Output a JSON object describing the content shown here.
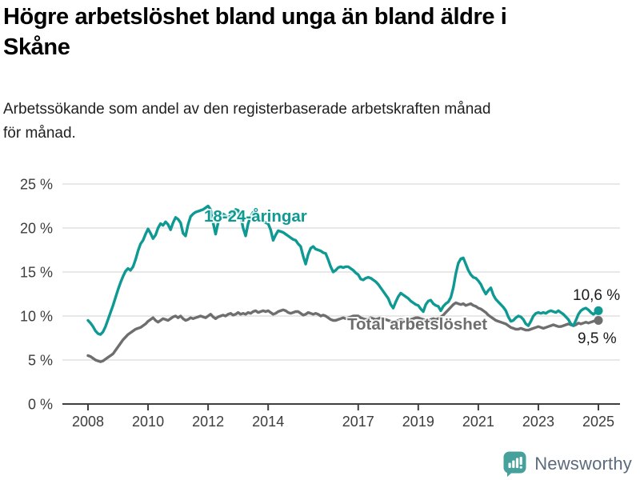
{
  "header": {
    "title_lines": [
      "Högre arbetslöshet bland unga än bland äldre i",
      "Skåne"
    ],
    "subtitle_lines": [
      "Arbetssökande som andel av den registerbaserade arbetskraften månad",
      "för månad."
    ]
  },
  "chart_data": {
    "type": "line",
    "title": "Högre arbetslöshet bland unga än bland äldre i Skåne",
    "subtitle": "Arbetssökande som andel av den registerbaserade arbetskraften månad för månad.",
    "x_unit": "month",
    "x_start_year": 2008,
    "x_end_year": 2025,
    "x_tick_years": [
      2008,
      2010,
      2012,
      2014,
      2017,
      2019,
      2021,
      2023,
      2025
    ],
    "x_tick_labels": [
      "2008",
      "2010",
      "2012",
      "2014",
      "2017",
      "2019",
      "2021",
      "2023",
      "2025"
    ],
    "ylim": [
      0,
      25
    ],
    "y_tick_values": [
      0,
      5,
      10,
      15,
      20,
      25
    ],
    "y_tick_labels": [
      "0 %",
      "5 %",
      "10 %",
      "15 %",
      "20 %",
      "25 %"
    ],
    "grid": "horizontal",
    "legend_position": "inline-labels",
    "colors": {
      "grid": "#d9d9d9",
      "axis": "#3f3f3f",
      "tick_text": "#3d3d3d",
      "value_label": "#1a1a1a"
    },
    "series": [
      {
        "name": "Total arbetslöshet",
        "color": "#6e6e6e",
        "end_label": "9,5 %",
        "end_value": 9.5,
        "values": [
          5.5,
          5.4,
          5.2,
          5.0,
          4.9,
          4.8,
          4.9,
          5.1,
          5.3,
          5.5,
          5.7,
          6.1,
          6.5,
          6.9,
          7.3,
          7.6,
          7.9,
          8.1,
          8.3,
          8.5,
          8.6,
          8.7,
          8.9,
          9.1,
          9.4,
          9.6,
          9.8,
          9.5,
          9.3,
          9.5,
          9.7,
          9.6,
          9.5,
          9.7,
          9.9,
          10.0,
          9.8,
          10.0,
          9.7,
          9.5,
          9.6,
          9.8,
          9.7,
          9.8,
          9.9,
          10.0,
          9.9,
          9.8,
          10.0,
          10.2,
          9.9,
          9.7,
          9.9,
          10.0,
          10.1,
          10.0,
          10.2,
          10.3,
          10.1,
          10.2,
          10.4,
          10.2,
          10.3,
          10.2,
          10.4,
          10.3,
          10.5,
          10.6,
          10.4,
          10.5,
          10.6,
          10.5,
          10.6,
          10.4,
          10.2,
          10.3,
          10.5,
          10.6,
          10.7,
          10.6,
          10.4,
          10.3,
          10.4,
          10.5,
          10.5,
          10.3,
          10.1,
          10.2,
          10.4,
          10.3,
          10.2,
          10.3,
          10.2,
          10.0,
          10.1,
          10.0,
          9.8,
          9.6,
          9.5,
          9.5,
          9.6,
          9.7,
          9.8,
          9.7,
          9.8,
          9.9,
          10.0,
          10.0,
          10.0,
          9.8,
          9.7,
          9.6,
          9.7,
          9.8,
          9.7,
          9.6,
          9.7,
          9.8,
          9.7,
          9.6,
          9.5,
          9.4,
          9.3,
          9.4,
          9.5,
          9.6,
          9.5,
          9.4,
          9.5,
          9.6,
          9.7,
          9.8,
          9.8,
          9.7,
          9.6,
          9.5,
          9.5,
          9.6,
          9.7,
          9.6,
          9.7,
          9.9,
          10.1,
          10.4,
          10.7,
          11.0,
          11.3,
          11.5,
          11.4,
          11.3,
          11.4,
          11.2,
          11.3,
          11.4,
          11.2,
          11.1,
          10.9,
          10.8,
          10.6,
          10.4,
          10.1,
          9.9,
          9.7,
          9.5,
          9.4,
          9.3,
          9.2,
          9.1,
          8.9,
          8.7,
          8.6,
          8.5,
          8.5,
          8.6,
          8.5,
          8.4,
          8.4,
          8.5,
          8.6,
          8.7,
          8.8,
          8.7,
          8.6,
          8.7,
          8.8,
          8.9,
          9.0,
          8.9,
          8.8,
          8.8,
          8.9,
          9.0,
          9.1,
          9.0,
          8.9,
          9.0,
          9.2,
          9.1,
          9.2,
          9.3,
          9.2,
          9.3,
          9.4,
          9.5,
          9.5
        ]
      },
      {
        "name": "18-24-åringar",
        "color": "#0e9a93",
        "end_label": "10,6 %",
        "end_value": 10.6,
        "values": [
          9.5,
          9.2,
          8.8,
          8.3,
          8.0,
          7.9,
          8.2,
          8.8,
          9.6,
          10.4,
          11.2,
          12.1,
          13.0,
          13.8,
          14.5,
          15.1,
          15.4,
          15.2,
          15.6,
          16.4,
          17.4,
          18.2,
          18.6,
          19.3,
          19.9,
          19.4,
          18.8,
          19.2,
          20.0,
          20.5,
          20.3,
          20.7,
          20.4,
          19.8,
          20.6,
          21.2,
          21.0,
          20.6,
          19.4,
          19.1,
          20.4,
          21.3,
          21.6,
          21.8,
          21.9,
          22.0,
          22.1,
          22.3,
          22.5,
          22.1,
          20.6,
          19.3,
          20.6,
          21.3,
          21.6,
          21.4,
          21.2,
          21.5,
          21.8,
          22.1,
          22.0,
          21.4,
          20.0,
          19.1,
          20.5,
          21.3,
          21.8,
          21.6,
          21.3,
          21.0,
          20.8,
          20.6,
          20.5,
          19.8,
          18.6,
          19.2,
          19.7,
          19.6,
          19.5,
          19.3,
          19.1,
          18.9,
          18.7,
          18.6,
          18.2,
          17.9,
          16.8,
          15.9,
          17.0,
          17.7,
          17.9,
          17.6,
          17.5,
          17.4,
          17.2,
          17.1,
          16.4,
          15.6,
          15.0,
          15.2,
          15.5,
          15.6,
          15.5,
          15.6,
          15.6,
          15.4,
          15.2,
          14.9,
          14.7,
          14.2,
          14.1,
          14.3,
          14.4,
          14.3,
          14.1,
          13.9,
          13.6,
          13.2,
          12.8,
          12.4,
          12.0,
          11.3,
          10.9,
          11.6,
          12.2,
          12.6,
          12.4,
          12.2,
          12.0,
          11.7,
          11.5,
          11.3,
          11.2,
          10.8,
          10.5,
          11.3,
          11.7,
          11.8,
          11.4,
          11.2,
          11.1,
          10.6,
          11.1,
          11.4,
          11.6,
          12.1,
          13.2,
          14.8,
          16.0,
          16.5,
          16.6,
          15.9,
          15.2,
          14.7,
          14.4,
          14.3,
          14.0,
          13.6,
          13.0,
          12.5,
          12.9,
          13.2,
          12.4,
          11.9,
          11.6,
          11.3,
          11.0,
          10.6,
          9.9,
          9.4,
          9.5,
          9.8,
          10.0,
          9.9,
          9.6,
          9.1,
          8.9,
          9.4,
          10.0,
          10.3,
          10.4,
          10.3,
          10.4,
          10.3,
          10.5,
          10.6,
          10.5,
          10.4,
          10.6,
          10.4,
          10.2,
          9.9,
          9.6,
          9.1,
          8.9,
          9.5,
          10.2,
          10.6,
          10.8,
          10.9,
          10.7,
          10.4,
          10.2,
          10.4,
          10.6
        ]
      }
    ]
  },
  "footer": {
    "brand": "Newsworthy",
    "logo_icon": "bar-chart-speech-bubble",
    "icon_color": "#46a09b",
    "text_color": "#5c6b7c"
  }
}
